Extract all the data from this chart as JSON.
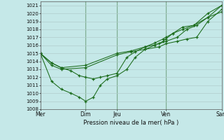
{
  "title": "Pression niveau de la mer( hPa )",
  "bg_color": "#c5e8e8",
  "line_color": "#1a6b1a",
  "vline_color": "#1a6b1a",
  "grid_color": "#b0cccc",
  "ylim": [
    1008,
    1021.5
  ],
  "ytick_min": 1008,
  "ytick_max": 1021,
  "xlim_min": 0,
  "xlim_max": 13.0,
  "xtick_positions": [
    0,
    3.25,
    5.5,
    9.0,
    13.0
  ],
  "xtick_labels": [
    "Mer",
    "Dim",
    "Jeu",
    "Ven",
    "Sam"
  ],
  "vlines": [
    3.25,
    5.5,
    9.0
  ],
  "series": [
    {
      "x": [
        0,
        0.8,
        1.5,
        3.25,
        5.5,
        6.5,
        7.5,
        8.5,
        9.0,
        9.8,
        10.5,
        11.2,
        12.0,
        13.0
      ],
      "y": [
        1015,
        1013.5,
        1013.0,
        1013.2,
        1014.8,
        1015.2,
        1015.5,
        1015.8,
        1016.2,
        1016.5,
        1016.8,
        1017.0,
        1019.0,
        1020.5
      ]
    },
    {
      "x": [
        0,
        0.8,
        1.5,
        2.2,
        2.8,
        3.25,
        3.8,
        4.3,
        4.8,
        5.5,
        6.2,
        6.8,
        7.5,
        8.2,
        8.8,
        9.0,
        9.5,
        10.2,
        11.0,
        12.0,
        13.0
      ],
      "y": [
        1015,
        1011.5,
        1010.5,
        1010.0,
        1009.5,
        1009.0,
        1009.5,
        1011.0,
        1011.8,
        1012.2,
        1013.0,
        1014.5,
        1015.5,
        1016.0,
        1016.5,
        1016.8,
        1017.5,
        1018.0,
        1018.5,
        1019.5,
        1021.0
      ]
    },
    {
      "x": [
        0,
        0.8,
        1.5,
        2.2,
        2.8,
        3.25,
        3.8,
        4.3,
        4.8,
        5.5,
        6.2,
        6.8,
        7.5,
        8.2,
        8.8,
        9.0,
        9.5,
        10.2,
        11.0,
        12.0,
        13.0
      ],
      "y": [
        1015,
        1013.8,
        1013.2,
        1012.8,
        1012.2,
        1012.0,
        1011.8,
        1012.0,
        1012.2,
        1012.5,
        1014.5,
        1015.2,
        1015.8,
        1016.3,
        1016.8,
        1017.0,
        1017.5,
        1018.3,
        1018.5,
        1020.0,
        1021.0
      ]
    },
    {
      "x": [
        0,
        0.8,
        1.5,
        3.25,
        5.5,
        6.5,
        7.5,
        8.5,
        9.0,
        9.8,
        10.5,
        11.2,
        12.0,
        13.0
      ],
      "y": [
        1015,
        1013.8,
        1013.2,
        1013.5,
        1015.0,
        1015.3,
        1015.8,
        1016.2,
        1016.5,
        1017.0,
        1018.0,
        1018.5,
        1019.5,
        1020.2
      ]
    }
  ]
}
